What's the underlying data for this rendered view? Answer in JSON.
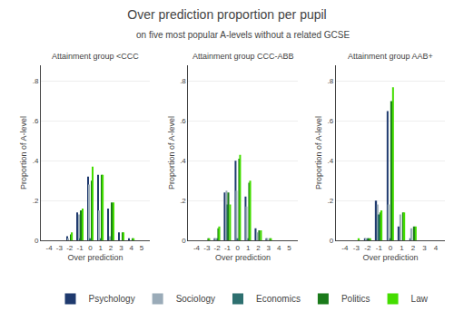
{
  "title": "Over prediction proportion per pupil",
  "subtitle": "on five most popular A-levels without a related GCSE",
  "chart_data": [
    {
      "type": "bar",
      "title": "Attainment group <CCC",
      "xlabel": "Over prediction",
      "ylabel": "Proportion of A-level",
      "xlim": [
        -4.8,
        5.8
      ],
      "xticks": [
        -4,
        -3,
        -2,
        -1,
        0,
        1,
        2,
        3,
        4,
        5
      ],
      "ylim": [
        0,
        0.88
      ],
      "yticks": [
        0,
        {
          "value": 0.2,
          "label": ".2"
        },
        {
          "value": 0.4,
          "label": ".4"
        },
        {
          "value": 0.6,
          "label": ".6"
        },
        {
          "value": 0.8,
          "label": ".8"
        }
      ],
      "grid": "y",
      "legend": "bottom",
      "series": [
        {
          "name": "Psychology",
          "color": "#1f3a6e",
          "x": [
            -2,
            -1,
            0,
            1,
            2,
            3,
            4
          ],
          "values": [
            0.02,
            0.14,
            0.32,
            0.33,
            0.16,
            0.04,
            0.01
          ]
        },
        {
          "name": "Sociology",
          "color": "#9aabb8",
          "x": [
            -2,
            -1,
            0,
            1,
            2
          ],
          "values": [
            0.01,
            0.13,
            0.28,
            0.15,
            0.02
          ]
        },
        {
          "name": "Economics",
          "color": "#2e7070",
          "x": [
            -1,
            0,
            1
          ],
          "values": [
            0.01,
            0.01,
            0.01
          ]
        },
        {
          "name": "Politics",
          "color": "#1a7a1a",
          "x": [
            -2,
            -1,
            0,
            1,
            2,
            3,
            4
          ],
          "values": [
            0.03,
            0.15,
            0.3,
            0.33,
            0.19,
            0.04,
            0.01
          ]
        },
        {
          "name": "Law",
          "color": "#44dd00",
          "x": [
            -2,
            -1,
            0,
            1,
            2,
            3,
            4
          ],
          "values": [
            0.04,
            0.16,
            0.37,
            0.33,
            0.19,
            0.04,
            0.01
          ]
        }
      ]
    },
    {
      "type": "bar",
      "title": "Attainment group CCC-ABB",
      "xlabel": "Over prediction",
      "ylabel": "Proportion of A-level",
      "xlim": [
        -4.8,
        5.8
      ],
      "xticks": [
        -4,
        -3,
        -2,
        -1,
        0,
        1,
        2,
        3,
        4,
        5
      ],
      "ylim": [
        0,
        0.88
      ],
      "yticks": [
        0,
        {
          "value": 0.2,
          "label": ".2"
        },
        {
          "value": 0.4,
          "label": ".4"
        },
        {
          "value": 0.6,
          "label": ".6"
        },
        {
          "value": 0.8,
          "label": ".8"
        }
      ],
      "grid": "y",
      "legend": "bottom",
      "series": [
        {
          "name": "Psychology",
          "color": "#1f3a6e",
          "x": [
            -2,
            -1,
            0,
            1,
            2,
            3
          ],
          "values": [
            0.01,
            0.24,
            0.4,
            0.22,
            0.06,
            0.01
          ]
        },
        {
          "name": "Sociology",
          "color": "#9aabb8",
          "x": [
            -2,
            -1,
            0,
            1,
            2,
            3
          ],
          "values": [
            0.01,
            0.25,
            0.25,
            0.17,
            0.04,
            0.01
          ]
        },
        {
          "name": "Economics",
          "color": "#2e7070",
          "x": [
            -2,
            -1,
            0,
            1
          ],
          "values": [
            0.01,
            0.18,
            0.01,
            0.01
          ]
        },
        {
          "name": "Politics",
          "color": "#1a7a1a",
          "x": [
            -3,
            -2,
            -1,
            0,
            1,
            2,
            3
          ],
          "values": [
            0.01,
            0.06,
            0.24,
            0.41,
            0.29,
            0.05,
            0.01
          ]
        },
        {
          "name": "Law",
          "color": "#44dd00",
          "x": [
            -3,
            -2,
            -1,
            0,
            1,
            2,
            3
          ],
          "values": [
            0.01,
            0.07,
            0.18,
            0.43,
            0.3,
            0.05,
            0.01
          ]
        }
      ]
    },
    {
      "type": "bar",
      "title": "Attainment group AAB+",
      "xlabel": "Over prediction",
      "ylabel": "Proportion of A-level",
      "xlim": [
        -4.8,
        4.8
      ],
      "xticks": [
        -4,
        -3,
        -2,
        -1,
        0,
        1,
        2,
        3,
        4
      ],
      "ylim": [
        0,
        0.88
      ],
      "yticks": [
        0,
        {
          "value": 0.2,
          "label": ".2"
        },
        {
          "value": 0.4,
          "label": ".4"
        },
        {
          "value": 0.6,
          "label": ".6"
        },
        {
          "value": 0.8,
          "label": ".8"
        }
      ],
      "grid": "y",
      "legend": "bottom",
      "series": [
        {
          "name": "Psychology",
          "color": "#1f3a6e",
          "x": [
            -2,
            -1,
            0,
            1,
            2
          ],
          "values": [
            0.01,
            0.2,
            0.65,
            0.07,
            0.01
          ]
        },
        {
          "name": "Sociology",
          "color": "#9aabb8",
          "x": [
            -2,
            -1,
            0,
            1,
            2
          ],
          "values": [
            0.01,
            0.18,
            0.18,
            0.13,
            0.06
          ]
        },
        {
          "name": "Economics",
          "color": "#2e7070",
          "x": [
            -2,
            -1,
            0
          ],
          "values": [
            0.01,
            0.13,
            0.01
          ]
        },
        {
          "name": "Politics",
          "color": "#1a7a1a",
          "x": [
            -2,
            -1,
            0,
            1,
            2
          ],
          "values": [
            0.01,
            0.14,
            0.7,
            0.14,
            0.07
          ]
        },
        {
          "name": "Law",
          "color": "#44dd00",
          "x": [
            -3,
            -2,
            -1,
            0,
            1,
            2
          ],
          "values": [
            0.01,
            0.01,
            0.15,
            0.77,
            0.14,
            0.07
          ]
        }
      ]
    }
  ]
}
